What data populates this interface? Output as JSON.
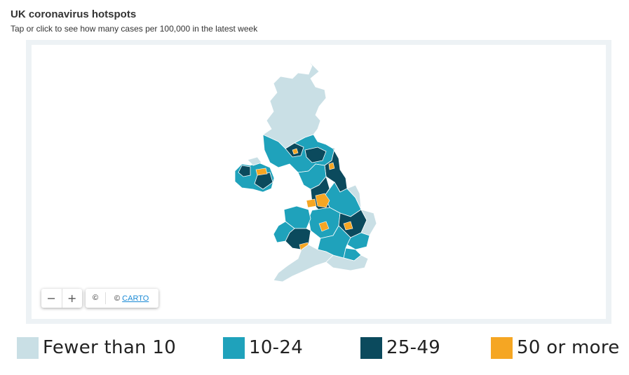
{
  "header": {
    "title": "UK coronavirus hotspots",
    "subtitle": "Tap or click to see how many cases per 100,000 in the latest week"
  },
  "map": {
    "colors": {
      "fewer_than_10": "#c9dfe5",
      "ten_to_24": "#1fa2bb",
      "twentyfive_to_49": "#0b4a5d",
      "fifty_or_more": "#f5a623"
    },
    "controls": {
      "zoom_out": "−",
      "zoom_in": "+",
      "copyright": "©",
      "attribution_prefix": "©",
      "attribution_link": "CARTO"
    }
  },
  "legend": [
    {
      "label": "Fewer than 10",
      "color": "#c9dfe5"
    },
    {
      "label": "10-24",
      "color": "#1fa2bb"
    },
    {
      "label": "25-49",
      "color": "#0b4a5d"
    },
    {
      "label": "50 or more",
      "color": "#f5a623"
    }
  ]
}
